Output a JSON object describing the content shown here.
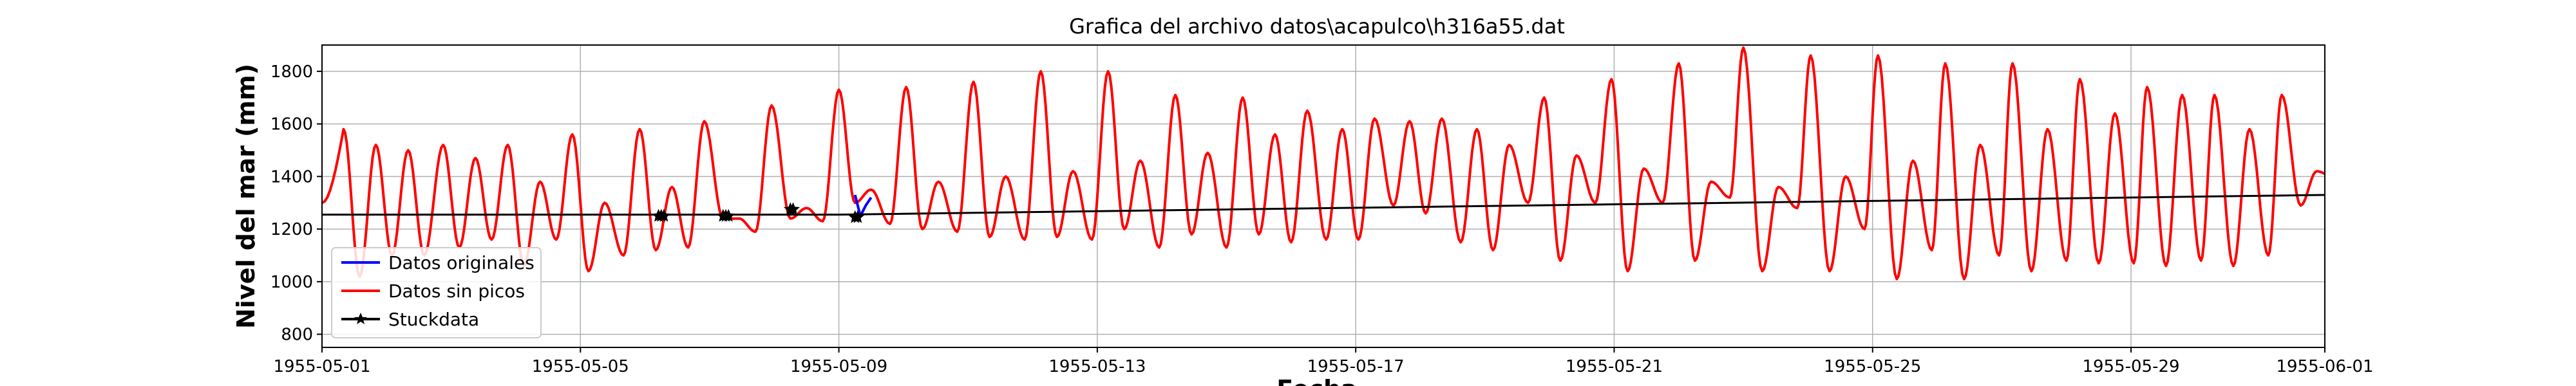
{
  "chart_data": {
    "type": "line",
    "title": "Grafica del archivo datos\\acapulco\\h316a55.dat",
    "xlabel": "Fecha",
    "ylabel": "Nivel del mar (mm)",
    "xlim": [
      "1955-05-01",
      "1955-06-01"
    ],
    "ylim": [
      750,
      1900
    ],
    "x_ticks": [
      "1955-05-01",
      "1955-05-05",
      "1955-05-09",
      "1955-05-13",
      "1955-05-17",
      "1955-05-21",
      "1955-05-25",
      "1955-05-29",
      "1955-06-01"
    ],
    "y_ticks": [
      800,
      1000,
      1200,
      1400,
      1600,
      1800
    ],
    "grid": true,
    "legend_position": "lower-left",
    "colors": {
      "original": "#0000ff",
      "clean": "#ff0000",
      "stuck": "#000000"
    },
    "legend": [
      {
        "label": "Datos originales",
        "color": "#0000ff",
        "marker": "line"
      },
      {
        "label": "Datos sin picos",
        "color": "#ff0000",
        "marker": "line"
      },
      {
        "label": "Stuckdata",
        "color": "#000000",
        "marker": "star"
      }
    ],
    "series": [
      {
        "name": "Datos sin picos",
        "color": "#ff0000",
        "peaks_date": [
          "1955-05-01T08",
          "1955-05-01T20",
          "1955-05-02T08",
          "1955-05-02T21",
          "1955-05-03T09",
          "1955-05-03T21",
          "1955-05-04T09",
          "1955-05-04T21",
          "1955-05-05T09",
          "1955-05-05T22",
          "1955-05-06T10",
          "1955-05-06T22",
          "1955-05-07T11",
          "1955-05-07T23",
          "1955-05-08T12",
          "1955-05-09T00",
          "1955-05-09T12",
          "1955-05-10T01",
          "1955-05-10T13",
          "1955-05-11T02",
          "1955-05-11T14",
          "1955-05-12T03",
          "1955-05-12T15",
          "1955-05-13T04",
          "1955-05-13T16",
          "1955-05-14T05",
          "1955-05-14T17",
          "1955-05-15T06",
          "1955-05-15T18",
          "1955-05-16T06",
          "1955-05-16T19",
          "1955-05-17T07",
          "1955-05-17T20",
          "1955-05-18T08",
          "1955-05-18T21",
          "1955-05-19T09",
          "1955-05-19T22",
          "1955-05-20T10",
          "1955-05-20T23",
          "1955-05-21T11",
          "1955-05-22T00",
          "1955-05-22T12",
          "1955-05-23T00",
          "1955-05-23T13",
          "1955-05-24T01",
          "1955-05-24T14",
          "1955-05-25T02",
          "1955-05-25T15",
          "1955-05-26T03",
          "1955-05-26T16",
          "1955-05-27T04",
          "1955-05-27T17",
          "1955-05-28T05",
          "1955-05-28T18",
          "1955-05-29T06",
          "1955-05-29T19",
          "1955-05-30T07",
          "1955-05-30T20",
          "1955-05-31T08",
          "1955-05-31T21"
        ],
        "peaks_value": [
          1580,
          1520,
          1500,
          1520,
          1470,
          1520,
          1380,
          1560,
          1300,
          1580,
          1360,
          1610,
          1240,
          1670,
          1280,
          1730,
          1350,
          1740,
          1380,
          1760,
          1400,
          1800,
          1420,
          1800,
          1460,
          1710,
          1490,
          1700,
          1560,
          1650,
          1580,
          1620,
          1610,
          1620,
          1580,
          1520,
          1700,
          1480,
          1770,
          1430,
          1830,
          1380,
          1890,
          1360,
          1860,
          1400,
          1860,
          1460,
          1830,
          1520,
          1830,
          1580,
          1770,
          1640,
          1740,
          1710,
          1710,
          1580,
          1710,
          1420
        ],
        "troughs_date": [
          "1955-05-01T14",
          "1955-05-02T02",
          "1955-05-02T14",
          "1955-05-03T03",
          "1955-05-03T15",
          "1955-05-04T03",
          "1955-05-04T15",
          "1955-05-05T03",
          "1955-05-05T16",
          "1955-05-06T04",
          "1955-05-06T16",
          "1955-05-07T05",
          "1955-05-07T17",
          "1955-05-08T06",
          "1955-05-08T18",
          "1955-05-09T06",
          "1955-05-09T19",
          "1955-05-10T07",
          "1955-05-10T20",
          "1955-05-11T08",
          "1955-05-11T21",
          "1955-05-12T09",
          "1955-05-12T22",
          "1955-05-13T10",
          "1955-05-13T23",
          "1955-05-14T11",
          "1955-05-15T00",
          "1955-05-15T12",
          "1955-05-16T00",
          "1955-05-16T13",
          "1955-05-17T01",
          "1955-05-17T14",
          "1955-05-18T02",
          "1955-05-18T15",
          "1955-05-19T03",
          "1955-05-19T16",
          "1955-05-20T04",
          "1955-05-20T17",
          "1955-05-21T05",
          "1955-05-21T18",
          "1955-05-22T06",
          "1955-05-22T19",
          "1955-05-23T07",
          "1955-05-23T20",
          "1955-05-24T08",
          "1955-05-24T21",
          "1955-05-25T09",
          "1955-05-25T22",
          "1955-05-26T10",
          "1955-05-26T23",
          "1955-05-27T11",
          "1955-05-28T00",
          "1955-05-28T12",
          "1955-05-29T01",
          "1955-05-29T13",
          "1955-05-30T02",
          "1955-05-30T14",
          "1955-05-31T03",
          "1955-05-31T15"
        ],
        "troughs_value": [
          1020,
          1100,
          1100,
          1130,
          1160,
          1060,
          1160,
          1040,
          1100,
          1120,
          1130,
          1240,
          1190,
          1240,
          1230,
          1300,
          1220,
          1200,
          1190,
          1170,
          1160,
          1170,
          1160,
          1200,
          1130,
          1180,
          1130,
          1180,
          1150,
          1160,
          1160,
          1290,
          1260,
          1150,
          1120,
          1300,
          1080,
          1300,
          1040,
          1300,
          1080,
          1320,
          1040,
          1280,
          1040,
          1200,
          1010,
          1120,
          1010,
          1100,
          1040,
          1080,
          1070,
          1070,
          1060,
          1080,
          1060,
          1100,
          1290
        ]
      },
      {
        "name": "Datos originales",
        "color": "#0000ff",
        "x": [
          "1955-05-09T06",
          "1955-05-09T08",
          "1955-05-09T10",
          "1955-05-09T12"
        ],
        "y": [
          1330,
          1250,
          1290,
          1320
        ]
      },
      {
        "name": "Stuckdata",
        "color": "#000000",
        "trend_x": [
          "1955-05-01",
          "1955-05-09",
          "1955-06-01"
        ],
        "trend_y": [
          1255,
          1255,
          1330
        ],
        "x": [
          "1955-05-06T05",
          "1955-05-06T06",
          "1955-05-06T07",
          "1955-05-07T05",
          "1955-05-07T06",
          "1955-05-07T07",
          "1955-05-08T06",
          "1955-05-08T07",
          "1955-05-09T06",
          "1955-05-09T07"
        ],
        "y": [
          1250,
          1250,
          1250,
          1250,
          1250,
          1250,
          1275,
          1275,
          1245,
          1245
        ]
      }
    ]
  }
}
